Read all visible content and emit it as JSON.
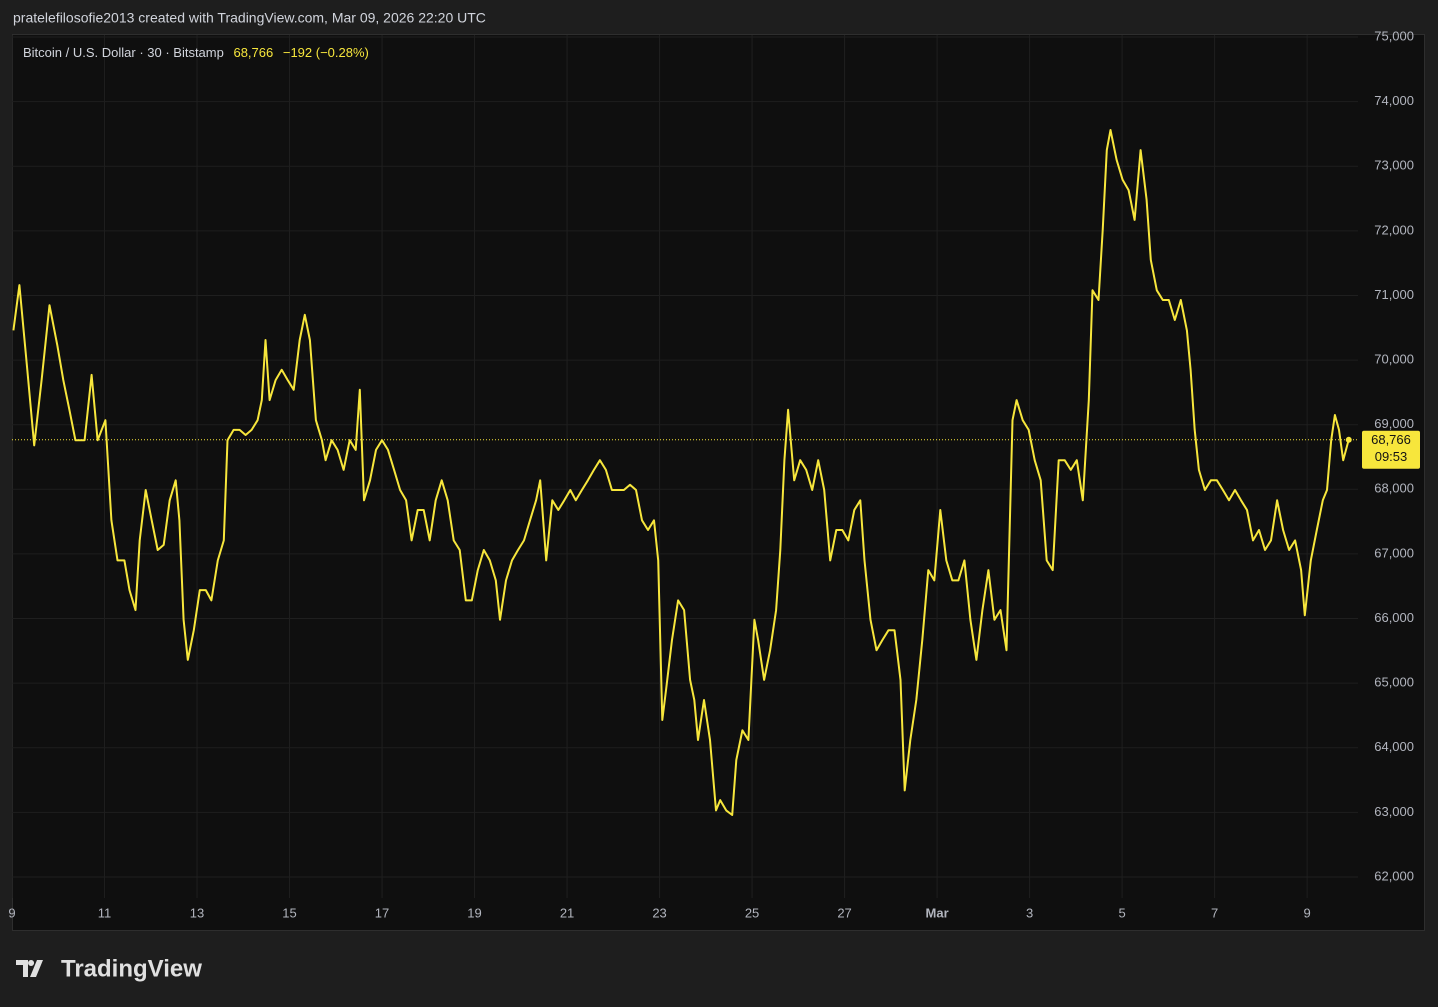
{
  "chart_data": {
    "type": "line",
    "header": "pratelefilosofie2013 created with TradingView.com, Mar 09, 2026 22:20 UTC",
    "brand": "TradingView",
    "legend_price": "68,766",
    "legend_change": "−192 (−0.28%)",
    "last_price": {
      "value": 68766,
      "label": "68,766"
    },
    "countdown": "09:53",
    "x": [
      0.03,
      0.16,
      0.33,
      0.48,
      0.64,
      0.81,
      0.98,
      1.11,
      1.24,
      1.37,
      1.57,
      1.72,
      1.85,
      2.02,
      2.15,
      2.28,
      2.43,
      2.54,
      2.67,
      2.76,
      2.89,
      3.02,
      3.15,
      3.28,
      3.41,
      3.54,
      3.62,
      3.71,
      3.8,
      3.93,
      4.06,
      4.19,
      4.31,
      4.45,
      4.58,
      4.66,
      4.79,
      4.92,
      5.05,
      5.18,
      5.31,
      5.4,
      5.48,
      5.57,
      5.7,
      5.83,
      5.96,
      6.09,
      6.22,
      6.33,
      6.44,
      6.57,
      6.7,
      6.78,
      6.91,
      7.04,
      7.17,
      7.3,
      7.43,
      7.52,
      7.61,
      7.74,
      7.87,
      8.0,
      8.13,
      8.26,
      8.39,
      8.52,
      8.64,
      8.77,
      8.9,
      9.03,
      9.16,
      9.29,
      9.42,
      9.55,
      9.68,
      9.81,
      9.94,
      10.07,
      10.2,
      10.33,
      10.46,
      10.55,
      10.68,
      10.81,
      10.94,
      11.07,
      11.2,
      11.33,
      11.42,
      11.55,
      11.68,
      11.81,
      11.94,
      12.07,
      12.19,
      12.32,
      12.45,
      12.58,
      12.71,
      12.84,
      12.97,
      13.1,
      13.23,
      13.36,
      13.49,
      13.62,
      13.75,
      13.88,
      13.97,
      14.06,
      14.14,
      14.27,
      14.4,
      14.53,
      14.66,
      14.75,
      14.83,
      14.96,
      15.09,
      15.22,
      15.31,
      15.44,
      15.57,
      15.66,
      15.79,
      15.92,
      16.05,
      16.13,
      16.26,
      16.39,
      16.52,
      16.61,
      16.7,
      16.78,
      16.91,
      17.04,
      17.17,
      17.3,
      17.43,
      17.56,
      17.69,
      17.82,
      17.95,
      18.08,
      18.21,
      18.34,
      18.43,
      18.56,
      18.69,
      18.82,
      18.95,
      19.08,
      19.21,
      19.3,
      19.42,
      19.55,
      19.68,
      19.81,
      19.94,
      20.07,
      20.2,
      20.33,
      20.46,
      20.59,
      20.72,
      20.85,
      20.98,
      21.11,
      21.24,
      21.37,
      21.5,
      21.63,
      21.72,
      21.85,
      21.98,
      22.11,
      22.24,
      22.37,
      22.5,
      22.63,
      22.76,
      22.89,
      23.02,
      23.15,
      23.28,
      23.36,
      23.49,
      23.58,
      23.67,
      23.75,
      23.88,
      24.01,
      24.14,
      24.27,
      24.4,
      24.53,
      24.62,
      24.75,
      24.88,
      25.01,
      25.14,
      25.27,
      25.4,
      25.48,
      25.57,
      25.66,
      25.79,
      25.92,
      26.05,
      26.18,
      26.31,
      26.44,
      26.57,
      26.7,
      26.83,
      26.96,
      27.09,
      27.22,
      27.35,
      27.48,
      27.61,
      27.74,
      27.87,
      27.95,
      28.08,
      28.21,
      28.34,
      28.43,
      28.52,
      28.6,
      28.69,
      28.78,
      28.9
    ],
    "series": [
      {
        "name": "Bitcoin / U.S. Dollar · 30 · Bitstamp",
        "color": "#f7e63c",
        "values": [
          70460,
          71160,
          69850,
          68680,
          69690,
          70850,
          70230,
          69690,
          69230,
          68760,
          68760,
          69770,
          68760,
          69070,
          67520,
          66900,
          66900,
          66440,
          66130,
          67210,
          67990,
          67520,
          67060,
          67140,
          67830,
          68140,
          67520,
          65980,
          65360,
          65820,
          66440,
          66440,
          66280,
          66900,
          67210,
          68760,
          68920,
          68920,
          68840,
          68920,
          69070,
          69380,
          70310,
          69380,
          69690,
          69850,
          69690,
          69540,
          70310,
          70700,
          70310,
          69070,
          68760,
          68450,
          68760,
          68610,
          68300,
          68760,
          68610,
          69540,
          67830,
          68140,
          68610,
          68760,
          68610,
          68300,
          67990,
          67830,
          67210,
          67680,
          67680,
          67210,
          67830,
          68140,
          67830,
          67210,
          67060,
          66280,
          66280,
          66750,
          67060,
          66900,
          66590,
          65980,
          66590,
          66900,
          67060,
          67210,
          67520,
          67830,
          68140,
          66900,
          67830,
          67680,
          67830,
          67990,
          67830,
          67990,
          68140,
          68300,
          68450,
          68300,
          67990,
          67990,
          67990,
          68070,
          67990,
          67520,
          67370,
          67520,
          66900,
          64430,
          64890,
          65670,
          66280,
          66130,
          65050,
          64740,
          64120,
          64740,
          64120,
          63030,
          63190,
          63030,
          62960,
          63810,
          64270,
          64120,
          65980,
          65670,
          65050,
          65510,
          66130,
          67060,
          68450,
          69230,
          68140,
          68450,
          68300,
          67990,
          68450,
          67990,
          66900,
          67370,
          67370,
          67210,
          67680,
          67830,
          66900,
          65980,
          65510,
          65670,
          65820,
          65820,
          65050,
          63340,
          64120,
          64740,
          65670,
          66750,
          66590,
          67680,
          66900,
          66590,
          66590,
          66900,
          65980,
          65360,
          66130,
          66750,
          65980,
          66130,
          65510,
          69070,
          69380,
          69070,
          68920,
          68450,
          68140,
          66900,
          66750,
          68450,
          68450,
          68300,
          68450,
          67830,
          69380,
          71080,
          70930,
          72010,
          73250,
          73560,
          73100,
          72790,
          72630,
          72170,
          73250,
          72480,
          71550,
          71080,
          70930,
          70930,
          70620,
          70930,
          70460,
          69850,
          68920,
          68300,
          67990,
          68140,
          68140,
          67990,
          67830,
          67990,
          67830,
          67680,
          67210,
          67370,
          67060,
          67210,
          67830,
          67370,
          67060,
          67210,
          66750,
          66050,
          66900,
          67370,
          67830,
          67990,
          68760,
          69150,
          68920,
          68450,
          68766
        ]
      }
    ],
    "xlim": [
      0,
      29.1
    ],
    "xticks": [
      {
        "value": 0,
        "label": "9"
      },
      {
        "value": 2,
        "label": "11"
      },
      {
        "value": 4,
        "label": "13"
      },
      {
        "value": 6,
        "label": "15"
      },
      {
        "value": 8,
        "label": "17"
      },
      {
        "value": 10,
        "label": "19"
      },
      {
        "value": 12,
        "label": "21"
      },
      {
        "value": 14,
        "label": "23"
      },
      {
        "value": 16,
        "label": "25"
      },
      {
        "value": 18,
        "label": "27"
      },
      {
        "value": 20,
        "label": "Mar"
      },
      {
        "value": 22,
        "label": "3"
      },
      {
        "value": 24,
        "label": "5"
      },
      {
        "value": 26,
        "label": "7"
      },
      {
        "value": 28,
        "label": "9"
      }
    ],
    "ylim": [
      62000,
      75000
    ],
    "yticks": [
      {
        "value": 62000,
        "label": "62,000"
      },
      {
        "value": 63000,
        "label": "63,000"
      },
      {
        "value": 64000,
        "label": "64,000"
      },
      {
        "value": 65000,
        "label": "65,000"
      },
      {
        "value": 66000,
        "label": "66,000"
      },
      {
        "value": 67000,
        "label": "67,000"
      },
      {
        "value": 68000,
        "label": "68,000"
      },
      {
        "value": 69000,
        "label": "69,000"
      },
      {
        "value": 70000,
        "label": "70,000"
      },
      {
        "value": 71000,
        "label": "71,000"
      },
      {
        "value": 72000,
        "label": "72,000"
      },
      {
        "value": 73000,
        "label": "73,000"
      },
      {
        "value": 74000,
        "label": "74,000"
      },
      {
        "value": 75000,
        "label": "75,000"
      }
    ],
    "grid": true
  }
}
